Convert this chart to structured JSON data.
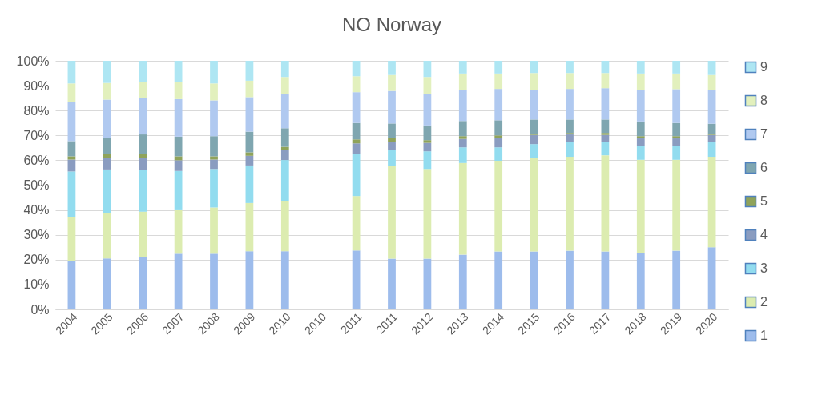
{
  "chart_data": {
    "type": "bar",
    "title": "NO Norway",
    "stacked": true,
    "grid": "y",
    "legend": "right",
    "categories": [
      "2004",
      "2005",
      "2006",
      "2007",
      "2008",
      "2009",
      "2010",
      "2010",
      "2011",
      "2011",
      "2012",
      "2013",
      "2014",
      "2015",
      "2016",
      "2017",
      "2018",
      "2019",
      "2020"
    ],
    "ylim": [
      0,
      100
    ],
    "yticks": [
      {
        "value": 0,
        "label": "0%"
      },
      {
        "value": 10,
        "label": "10%"
      },
      {
        "value": 20,
        "label": "20%"
      },
      {
        "value": 30,
        "label": "30%"
      },
      {
        "value": 40,
        "label": "40%"
      },
      {
        "value": 50,
        "label": "50%"
      },
      {
        "value": 60,
        "label": "60%"
      },
      {
        "value": 70,
        "label": "70%"
      },
      {
        "value": 80,
        "label": "80%"
      },
      {
        "value": 90,
        "label": "90%"
      },
      {
        "value": 100,
        "label": "100%"
      }
    ],
    "series": [
      {
        "name": "1",
        "color": "#9dbcec",
        "values": [
          19.6,
          20.5,
          21.2,
          22.4,
          22.4,
          23.4,
          23.4,
          null,
          23.7,
          20.4,
          20.4,
          22.0,
          23.3,
          23.3,
          23.6,
          23.3,
          22.8,
          23.6,
          25.0
        ]
      },
      {
        "name": "2",
        "color": "#dcecb0",
        "values": [
          17.7,
          18.2,
          18.1,
          17.5,
          18.6,
          19.4,
          20.2,
          null,
          21.9,
          37.3,
          36.1,
          36.9,
          36.5,
          37.8,
          37.8,
          38.7,
          37.4,
          36.6,
          36.4
        ]
      },
      {
        "name": "3",
        "color": "#92dcef",
        "values": [
          18.2,
          17.6,
          16.8,
          15.8,
          15.5,
          15.1,
          16.5,
          null,
          17.1,
          6.6,
          7.1,
          6.3,
          5.4,
          5.4,
          5.8,
          5.5,
          5.5,
          5.5,
          6.1
        ]
      },
      {
        "name": "4",
        "color": "#8a9cc0",
        "values": [
          4.8,
          4.5,
          4.7,
          4.3,
          3.8,
          3.9,
          3.9,
          null,
          4.1,
          2.9,
          3.4,
          3.4,
          3.9,
          3.7,
          3.2,
          2.7,
          3.1,
          3.1,
          2.7
        ]
      },
      {
        "name": "5",
        "color": "#8fa35a",
        "values": [
          1.3,
          1.7,
          1.7,
          1.6,
          1.3,
          1.4,
          1.4,
          null,
          1.6,
          1.9,
          1.1,
          1.1,
          0.9,
          0.5,
          0.6,
          0.8,
          0.9,
          0.9,
          0.5
        ]
      },
      {
        "name": "6",
        "color": "#7fa6b0",
        "values": [
          6.1,
          6.6,
          7.9,
          7.9,
          8.1,
          8.3,
          7.5,
          null,
          6.6,
          5.7,
          5.9,
          6.1,
          6.1,
          5.7,
          5.4,
          5.4,
          5.9,
          5.3,
          4.0
        ]
      },
      {
        "name": "7",
        "color": "#b0c9f0",
        "values": [
          15.9,
          15.3,
          14.6,
          15.1,
          14.4,
          13.9,
          13.9,
          null,
          12.4,
          13.1,
          12.8,
          12.6,
          12.6,
          12.0,
          12.3,
          12.6,
          12.8,
          13.6,
          13.5
        ]
      },
      {
        "name": "8",
        "color": "#e2f0bd",
        "values": [
          7.3,
          6.7,
          6.4,
          7.0,
          6.8,
          6.6,
          6.7,
          null,
          6.4,
          6.4,
          6.7,
          6.5,
          6.2,
          6.7,
          6.4,
          6.1,
          6.5,
          6.3,
          6.1
        ]
      },
      {
        "name": "9",
        "color": "#aee6f3",
        "values": [
          9.1,
          8.9,
          8.6,
          8.4,
          9.1,
          8.0,
          6.5,
          null,
          6.2,
          5.7,
          6.5,
          5.1,
          5.1,
          4.9,
          4.9,
          4.9,
          5.1,
          5.1,
          5.7
        ]
      }
    ]
  }
}
